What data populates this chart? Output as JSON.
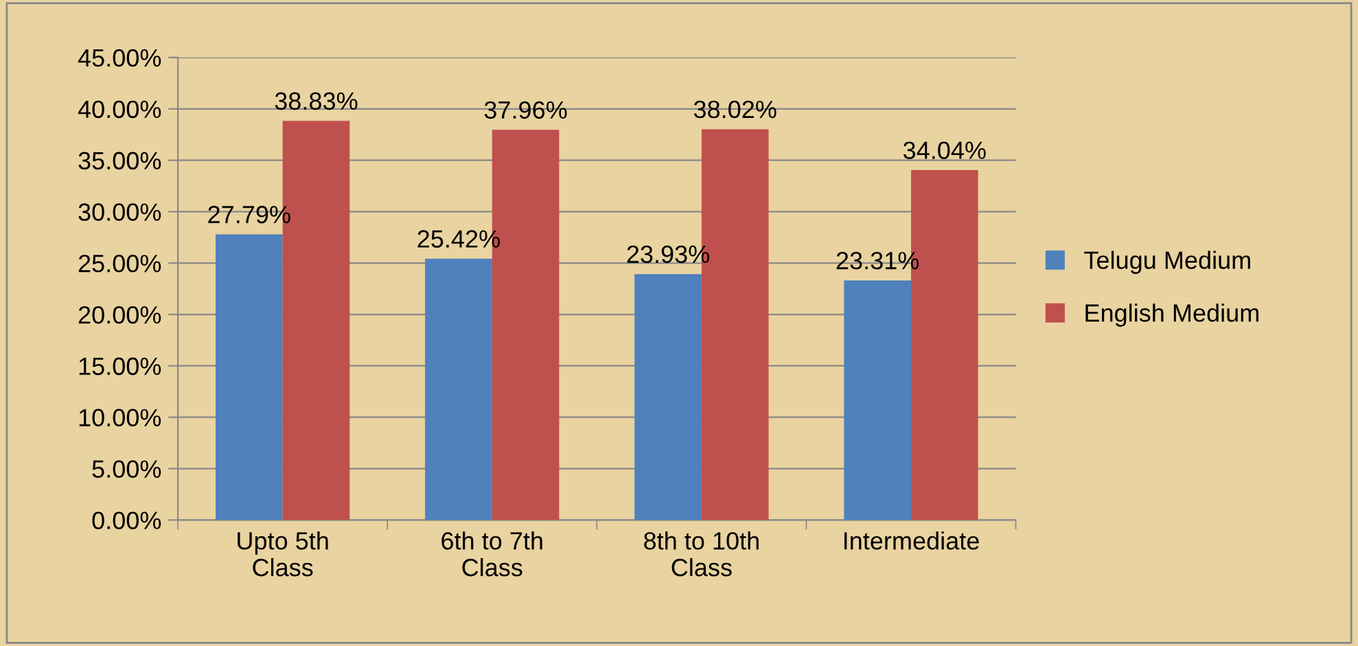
{
  "chart_data": {
    "type": "bar",
    "categories": [
      "Upto 5th\nClass",
      "6th to 7th\nClass",
      "8th to 10th\nClass",
      "Intermediate"
    ],
    "series": [
      {
        "name": "Telugu Medium",
        "color": "#4f81bd",
        "values": [
          27.79,
          25.42,
          23.93,
          23.31
        ],
        "value_labels": [
          "27.79%",
          "25.42%",
          "23.93%",
          "23.31%"
        ]
      },
      {
        "name": "English Medium",
        "color": "#c0504d",
        "values": [
          38.83,
          37.96,
          38.02,
          34.04
        ],
        "value_labels": [
          "38.83%",
          "37.96%",
          "38.02%",
          "34.04%"
        ]
      }
    ],
    "ylim": [
      0,
      45
    ],
    "yticks": [
      {
        "value": 0,
        "label": "0.00%"
      },
      {
        "value": 5,
        "label": "5.00%"
      },
      {
        "value": 10,
        "label": "10.00%"
      },
      {
        "value": 15,
        "label": "15.00%"
      },
      {
        "value": 20,
        "label": "20.00%"
      },
      {
        "value": 25,
        "label": "25.00%"
      },
      {
        "value": 30,
        "label": "30.00%"
      },
      {
        "value": 35,
        "label": "35.00%"
      },
      {
        "value": 40,
        "label": "40.00%"
      },
      {
        "value": 45,
        "label": "45.00%"
      }
    ],
    "grid": "y",
    "legend": "right"
  }
}
